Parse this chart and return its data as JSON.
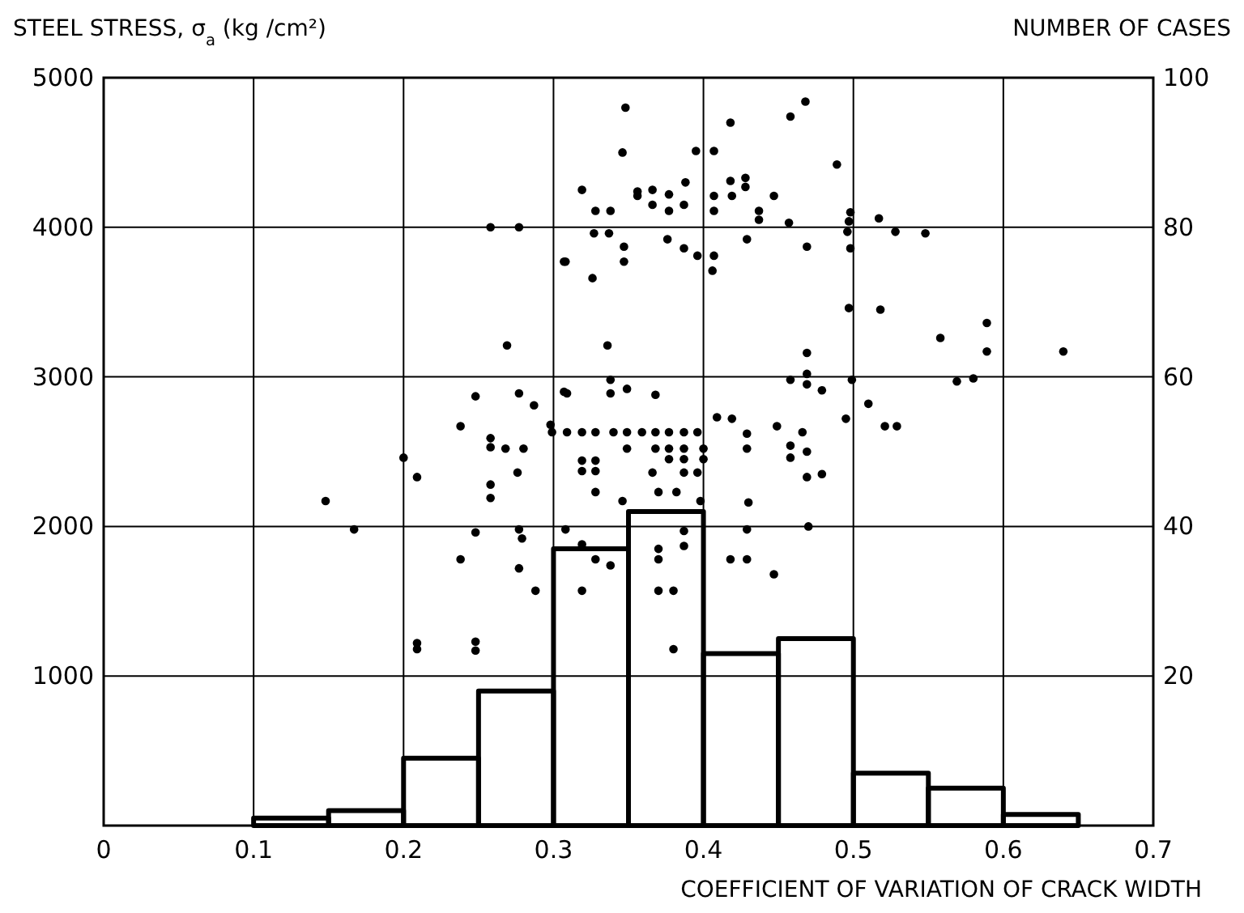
{
  "chart_data": {
    "type": "scatter",
    "xlabel": "COEFFICIENT OF VARIATION OF CRACK WIDTH",
    "ylabel": "STEEL STRESS, σ$_{a}$ (kg /cm²)",
    "y2label": "NUMBER OF CASES",
    "xlim": [
      0,
      0.7
    ],
    "xticks": [
      0,
      0.1,
      0.2,
      0.3,
      0.4,
      0.5,
      0.6,
      0.7
    ],
    "ylim": [
      0,
      5000
    ],
    "yticks": [
      1000,
      2000,
      3000,
      4000,
      5000
    ],
    "y2lim": [
      0,
      100
    ],
    "y2ticks": [
      20,
      40,
      60,
      80,
      100
    ],
    "grid": true,
    "marker": "circle",
    "series": [
      {
        "type": "scatter",
        "color": "#000000",
        "x": [
          0.258,
          0.277,
          0.307,
          0.269,
          0.248,
          0.277,
          0.287,
          0.238,
          0.298,
          0.299,
          0.258,
          0.258,
          0.268,
          0.28,
          0.307,
          0.2,
          0.209,
          0.276,
          0.258,
          0.258,
          0.148,
          0.167,
          0.248,
          0.277,
          0.279,
          0.238,
          0.277,
          0.288,
          0.209,
          0.209,
          0.248,
          0.248,
          0.348,
          0.468,
          0.458,
          0.418,
          0.346,
          0.395,
          0.407,
          0.489,
          0.319,
          0.388,
          0.418,
          0.428,
          0.428,
          0.356,
          0.356,
          0.366,
          0.366,
          0.377,
          0.377,
          0.387,
          0.407,
          0.407,
          0.419,
          0.447,
          0.437,
          0.437,
          0.328,
          0.338,
          0.457,
          0.498,
          0.497,
          0.496,
          0.517,
          0.528,
          0.548,
          0.327,
          0.337,
          0.347,
          0.347,
          0.308,
          0.326,
          0.376,
          0.387,
          0.396,
          0.407,
          0.406,
          0.429,
          0.469,
          0.498,
          0.497,
          0.518,
          0.336,
          0.469,
          0.469,
          0.469,
          0.458,
          0.479,
          0.499,
          0.51,
          0.495,
          0.521,
          0.529,
          0.309,
          0.338,
          0.338,
          0.349,
          0.368,
          0.409,
          0.419,
          0.449,
          0.466,
          0.309,
          0.319,
          0.328,
          0.34,
          0.349,
          0.359,
          0.368,
          0.377,
          0.387,
          0.396,
          0.349,
          0.368,
          0.377,
          0.387,
          0.4,
          0.319,
          0.319,
          0.328,
          0.328,
          0.377,
          0.387,
          0.4,
          0.366,
          0.387,
          0.396,
          0.328,
          0.37,
          0.382,
          0.346,
          0.398,
          0.308,
          0.319,
          0.328,
          0.338,
          0.37,
          0.37,
          0.319,
          0.37,
          0.38,
          0.387,
          0.387,
          0.38,
          0.429,
          0.429,
          0.458,
          0.458,
          0.469,
          0.469,
          0.479,
          0.43,
          0.429,
          0.47,
          0.418,
          0.429,
          0.447,
          0.558,
          0.589,
          0.589,
          0.64,
          0.569,
          0.58
        ],
        "values": [
          4000,
          4000,
          3770,
          3210,
          2870,
          2890,
          2810,
          2670,
          2680,
          2630,
          2590,
          2530,
          2520,
          2520,
          2900,
          2460,
          2330,
          2360,
          2280,
          2190,
          2170,
          1980,
          1960,
          1980,
          1920,
          1780,
          1720,
          1570,
          1220,
          1180,
          1230,
          1170,
          4800,
          4840,
          4740,
          4700,
          4500,
          4510,
          4510,
          4420,
          4250,
          4300,
          4310,
          4330,
          4270,
          4210,
          4240,
          4250,
          4150,
          4220,
          4110,
          4150,
          4210,
          4110,
          4210,
          4210,
          4110,
          4050,
          4110,
          4110,
          4030,
          4100,
          4040,
          3970,
          4060,
          3970,
          3960,
          3960,
          3960,
          3870,
          3770,
          3770,
          3660,
          3920,
          3860,
          3810,
          3810,
          3710,
          3920,
          3870,
          3860,
          3460,
          3450,
          3210,
          3160,
          3020,
          2950,
          2980,
          2910,
          2980,
          2820,
          2720,
          2670,
          2670,
          2890,
          2980,
          2890,
          2920,
          2880,
          2730,
          2720,
          2670,
          2630,
          2630,
          2630,
          2630,
          2630,
          2630,
          2630,
          2630,
          2630,
          2630,
          2630,
          2520,
          2520,
          2520,
          2520,
          2520,
          2440,
          2370,
          2440,
          2370,
          2450,
          2450,
          2450,
          2360,
          2360,
          2360,
          2230,
          2230,
          2230,
          2170,
          2170,
          1980,
          1880,
          1780,
          1740,
          1780,
          1850,
          1570,
          1570,
          1570,
          1970,
          1870,
          1180,
          2620,
          2520,
          2540,
          2460,
          2500,
          2330,
          2350,
          2160,
          1980,
          2000,
          1780,
          1780,
          1680,
          3260,
          3360,
          3170,
          3170,
          2970,
          2990
        ]
      },
      {
        "type": "histogram",
        "axis": "y2",
        "color": "#000000",
        "bins": [
          0.1,
          0.15,
          0.2,
          0.25,
          0.3,
          0.35,
          0.4,
          0.45,
          0.5,
          0.55,
          0.6,
          0.65
        ],
        "values": [
          1,
          2,
          9,
          18,
          37,
          42,
          23,
          25,
          7,
          5,
          1.5
        ]
      }
    ]
  }
}
